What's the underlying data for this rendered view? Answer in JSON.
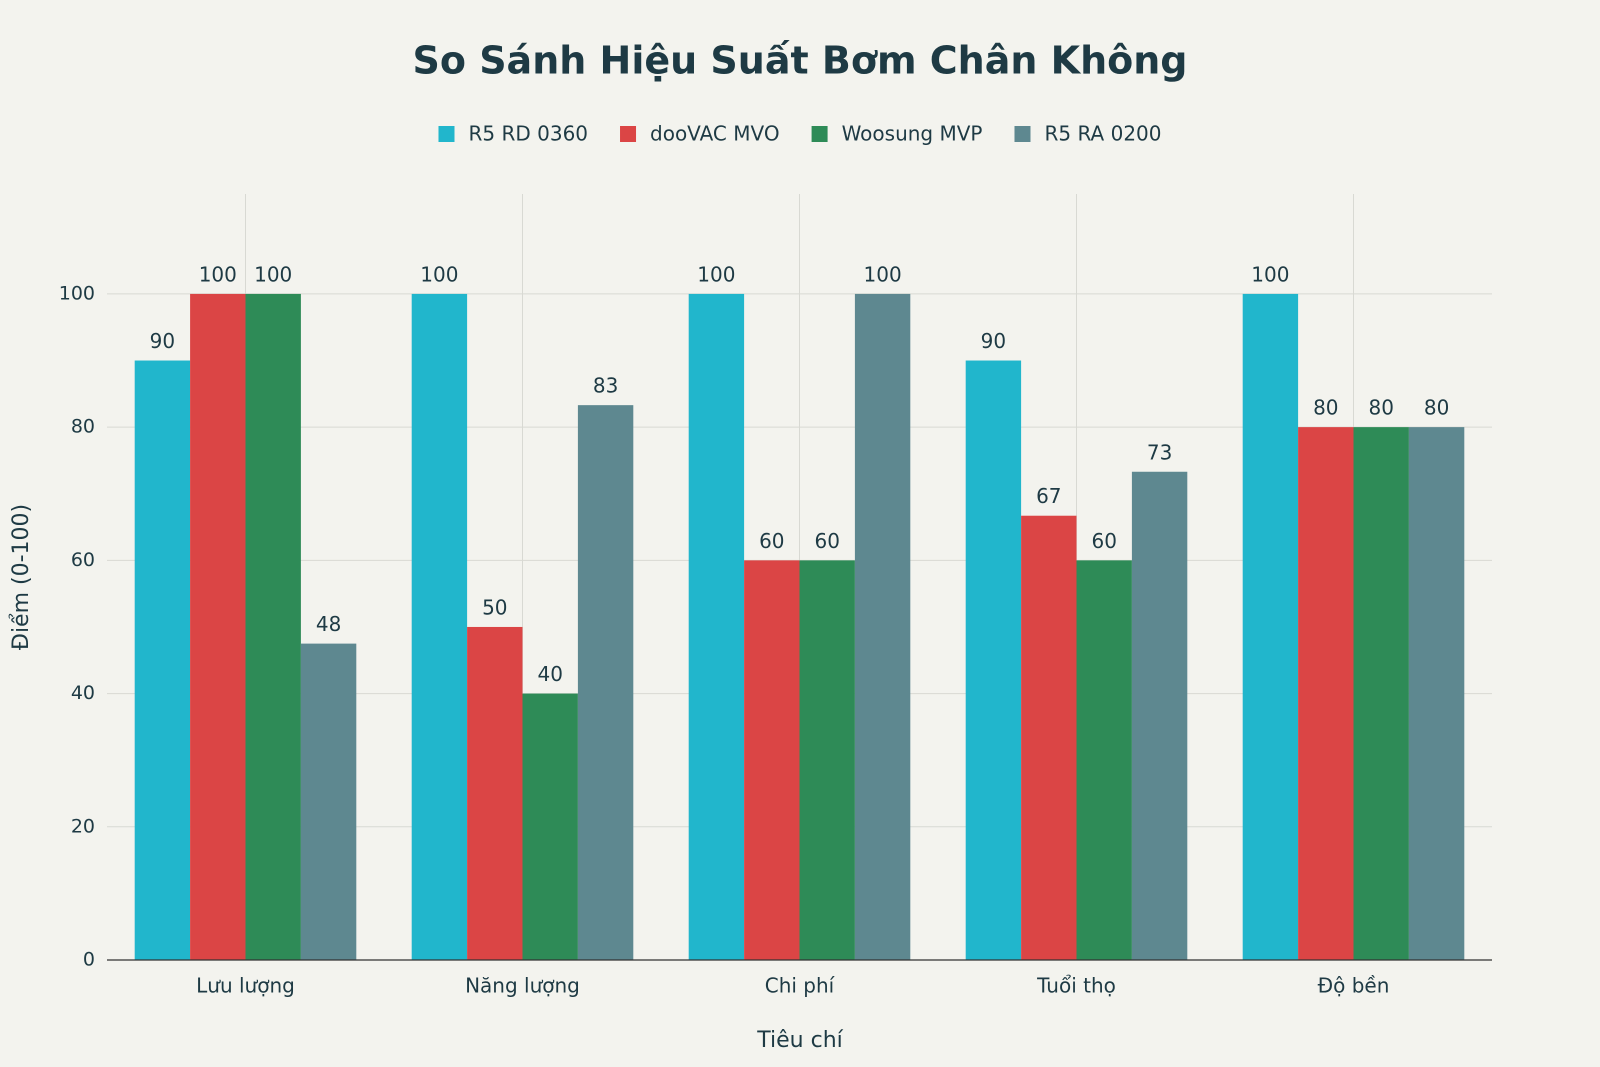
{
  "chart_data": {
    "type": "bar",
    "title": "So Sánh Hiệu Suất Bơm Chân Không",
    "x_label": "Tiêu chí",
    "y_label": "Điểm (0-100)",
    "categories": [
      "Lưu lượng",
      "Năng lượng",
      "Chi phí",
      "Tuổi thọ",
      "Độ bền"
    ],
    "series": [
      {
        "name": "R5 RD 0360",
        "color": "#21b6cc",
        "values": [
          90,
          100,
          100,
          90,
          100
        ],
        "value_labels": [
          "90",
          "100",
          "100",
          "90",
          "100"
        ]
      },
      {
        "name": "dooVAC MVO",
        "color": "#db4545",
        "values": [
          100,
          50,
          60,
          66.7,
          80
        ],
        "value_labels": [
          "100",
          "50",
          "60",
          "67",
          "80"
        ]
      },
      {
        "name": "Woosung MVP",
        "color": "#2e8b57",
        "values": [
          100,
          40,
          60,
          60,
          80
        ],
        "value_labels": [
          "100",
          "40",
          "60",
          "60",
          "80"
        ]
      },
      {
        "name": "R5 RA 0200",
        "color": "#5e8890",
        "values": [
          47.5,
          83.3,
          100,
          73.3,
          80
        ],
        "value_labels": [
          "48",
          "83",
          "100",
          "73",
          "80"
        ]
      }
    ],
    "ylim": [
      0,
      115
    ],
    "yticks": [
      0,
      20,
      40,
      60,
      80,
      100
    ],
    "grid": true
  }
}
